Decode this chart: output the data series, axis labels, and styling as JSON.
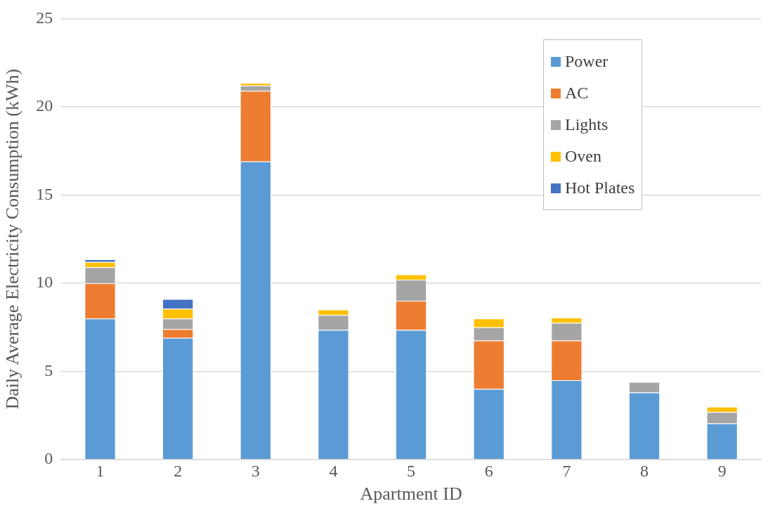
{
  "chart_data": {
    "type": "bar",
    "stacked": true,
    "xlabel": "Apartment ID",
    "ylabel": "Daily Average Electricity Consumption (kWh)",
    "categories": [
      "1",
      "2",
      "3",
      "4",
      "5",
      "6",
      "7",
      "8",
      "9"
    ],
    "series": [
      {
        "name": "Power",
        "color": "#5b9bd5",
        "values": [
          8.0,
          6.9,
          16.9,
          7.35,
          7.35,
          4.0,
          4.5,
          3.8,
          2.05
        ]
      },
      {
        "name": "AC",
        "color": "#ed7d31",
        "values": [
          2.0,
          0.5,
          4.0,
          null,
          1.65,
          2.75,
          2.25,
          null,
          null
        ]
      },
      {
        "name": "Lights",
        "color": "#a5a5a5",
        "values": [
          0.9,
          0.6,
          0.3,
          0.85,
          1.2,
          0.75,
          1.0,
          0.6,
          0.65
        ]
      },
      {
        "name": "Oven",
        "color": "#ffc000",
        "values": [
          0.3,
          0.55,
          0.15,
          0.3,
          0.3,
          0.5,
          0.3,
          null,
          0.3
        ]
      },
      {
        "name": "Hot Plates",
        "color": "#4472c4",
        "values": [
          0.15,
          0.55,
          null,
          null,
          null,
          null,
          null,
          null,
          null
        ]
      }
    ],
    "ylim": [
      0,
      25
    ],
    "yticks": [
      0,
      5,
      10,
      15,
      20,
      25
    ],
    "grid": "y",
    "legend": "top right"
  }
}
